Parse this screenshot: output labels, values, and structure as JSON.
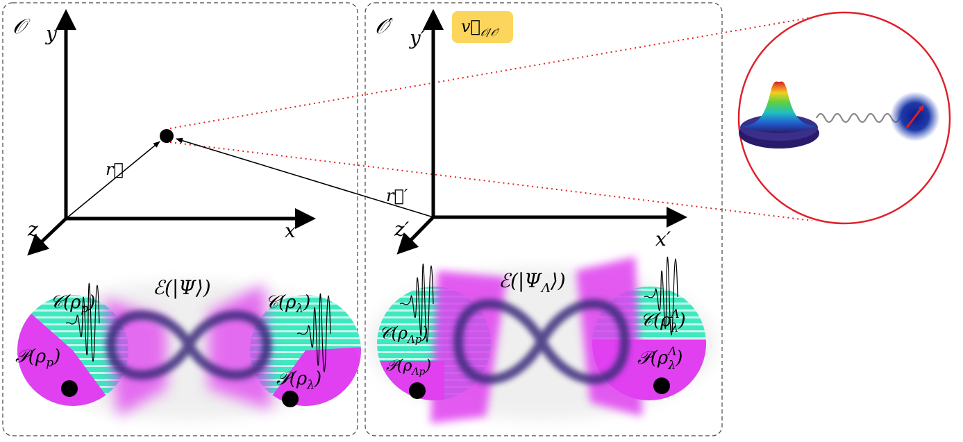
{
  "frame_left": {
    "observer": "𝒪",
    "axis_y": "y",
    "axis_x": "x",
    "axis_z": "z",
    "vector_r": "r⃗",
    "entanglement": "ℰ(|Ψ⟩)",
    "coherence_p": "𝒞(ρ",
    "coherence_p_sub": "p",
    "coherence_lambda": "𝒞(ρ",
    "coherence_lambda_sub": "λ",
    "polarization_p": "𝒫(ρ",
    "polarization_p_sub": "p",
    "polarization_lambda": "𝒫(ρ",
    "polarization_lambda_sub": "λ",
    "close": ")"
  },
  "frame_right": {
    "observer": "𝒪′",
    "axis_y": "y′",
    "axis_x": "x′",
    "axis_z": "z′",
    "vector_r": "r⃗′",
    "velocity_label": "v⃗",
    "velocity_sub": "𝒪/𝒪′",
    "velocity_badge_color": "#fcd65c",
    "entanglement": "ℰ(|Ψ",
    "entanglement_sub": "Λ",
    "entanglement_close": "⟩)",
    "coherence_lp": "𝒞(ρ",
    "coherence_lp_sub": "Λp",
    "coherence_lambda": "𝒞(ρ",
    "coherence_lambda_sub": "λ",
    "coherence_lambda_sup": "Λ",
    "polarization_lp": "𝒫(ρ",
    "polarization_lp_sub": "Λp",
    "polarization_lambda": "𝒫(ρ",
    "polarization_lambda_sub": "λ",
    "polarization_lambda_sup": "Λ",
    "close": ")"
  },
  "colors": {
    "magenta": "#e040f0",
    "teal": "#3ee8c0",
    "infinity": "#3a2a7a",
    "zoom_circle": "#e0202a",
    "dotted": "#e02020"
  }
}
